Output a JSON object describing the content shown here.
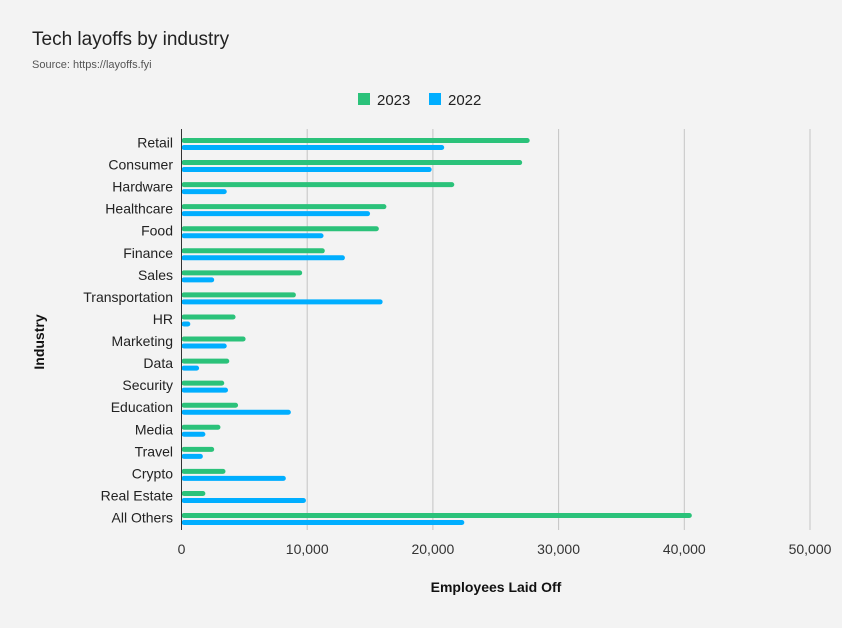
{
  "chart_data": {
    "type": "bar",
    "orientation": "horizontal",
    "title": "Tech layoffs by industry",
    "subtitle": "Source: https://layoffs.fyi",
    "xlabel": "Employees Laid Off",
    "ylabel": "Industry",
    "xlim": [
      0,
      50000
    ],
    "xticks": [
      0,
      10000,
      20000,
      30000,
      40000,
      50000
    ],
    "xtick_labels": [
      "0",
      "10,000",
      "20,000",
      "30,000",
      "40,000",
      "50,000"
    ],
    "grid": true,
    "legend_position": "top",
    "categories": [
      "Retail",
      "Consumer",
      "Hardware",
      "Healthcare",
      "Food",
      "Finance",
      "Sales",
      "Transportation",
      "HR",
      "Marketing",
      "Data",
      "Security",
      "Education",
      "Media",
      "Travel",
      "Crypto",
      "Real Estate",
      "All Others"
    ],
    "series": [
      {
        "name": "2023",
        "color": "#2bc27a",
        "values": [
          27700,
          27100,
          21700,
          16300,
          15700,
          11400,
          9600,
          9100,
          4300,
          5100,
          3800,
          3400,
          4500,
          3100,
          2600,
          3500,
          1900,
          40600
        ]
      },
      {
        "name": "2022",
        "color": "#00aeff",
        "values": [
          20900,
          19900,
          3600,
          15000,
          11300,
          13000,
          2600,
          16000,
          700,
          3600,
          1400,
          3700,
          8700,
          1900,
          1700,
          8300,
          9900,
          22500
        ]
      }
    ]
  }
}
